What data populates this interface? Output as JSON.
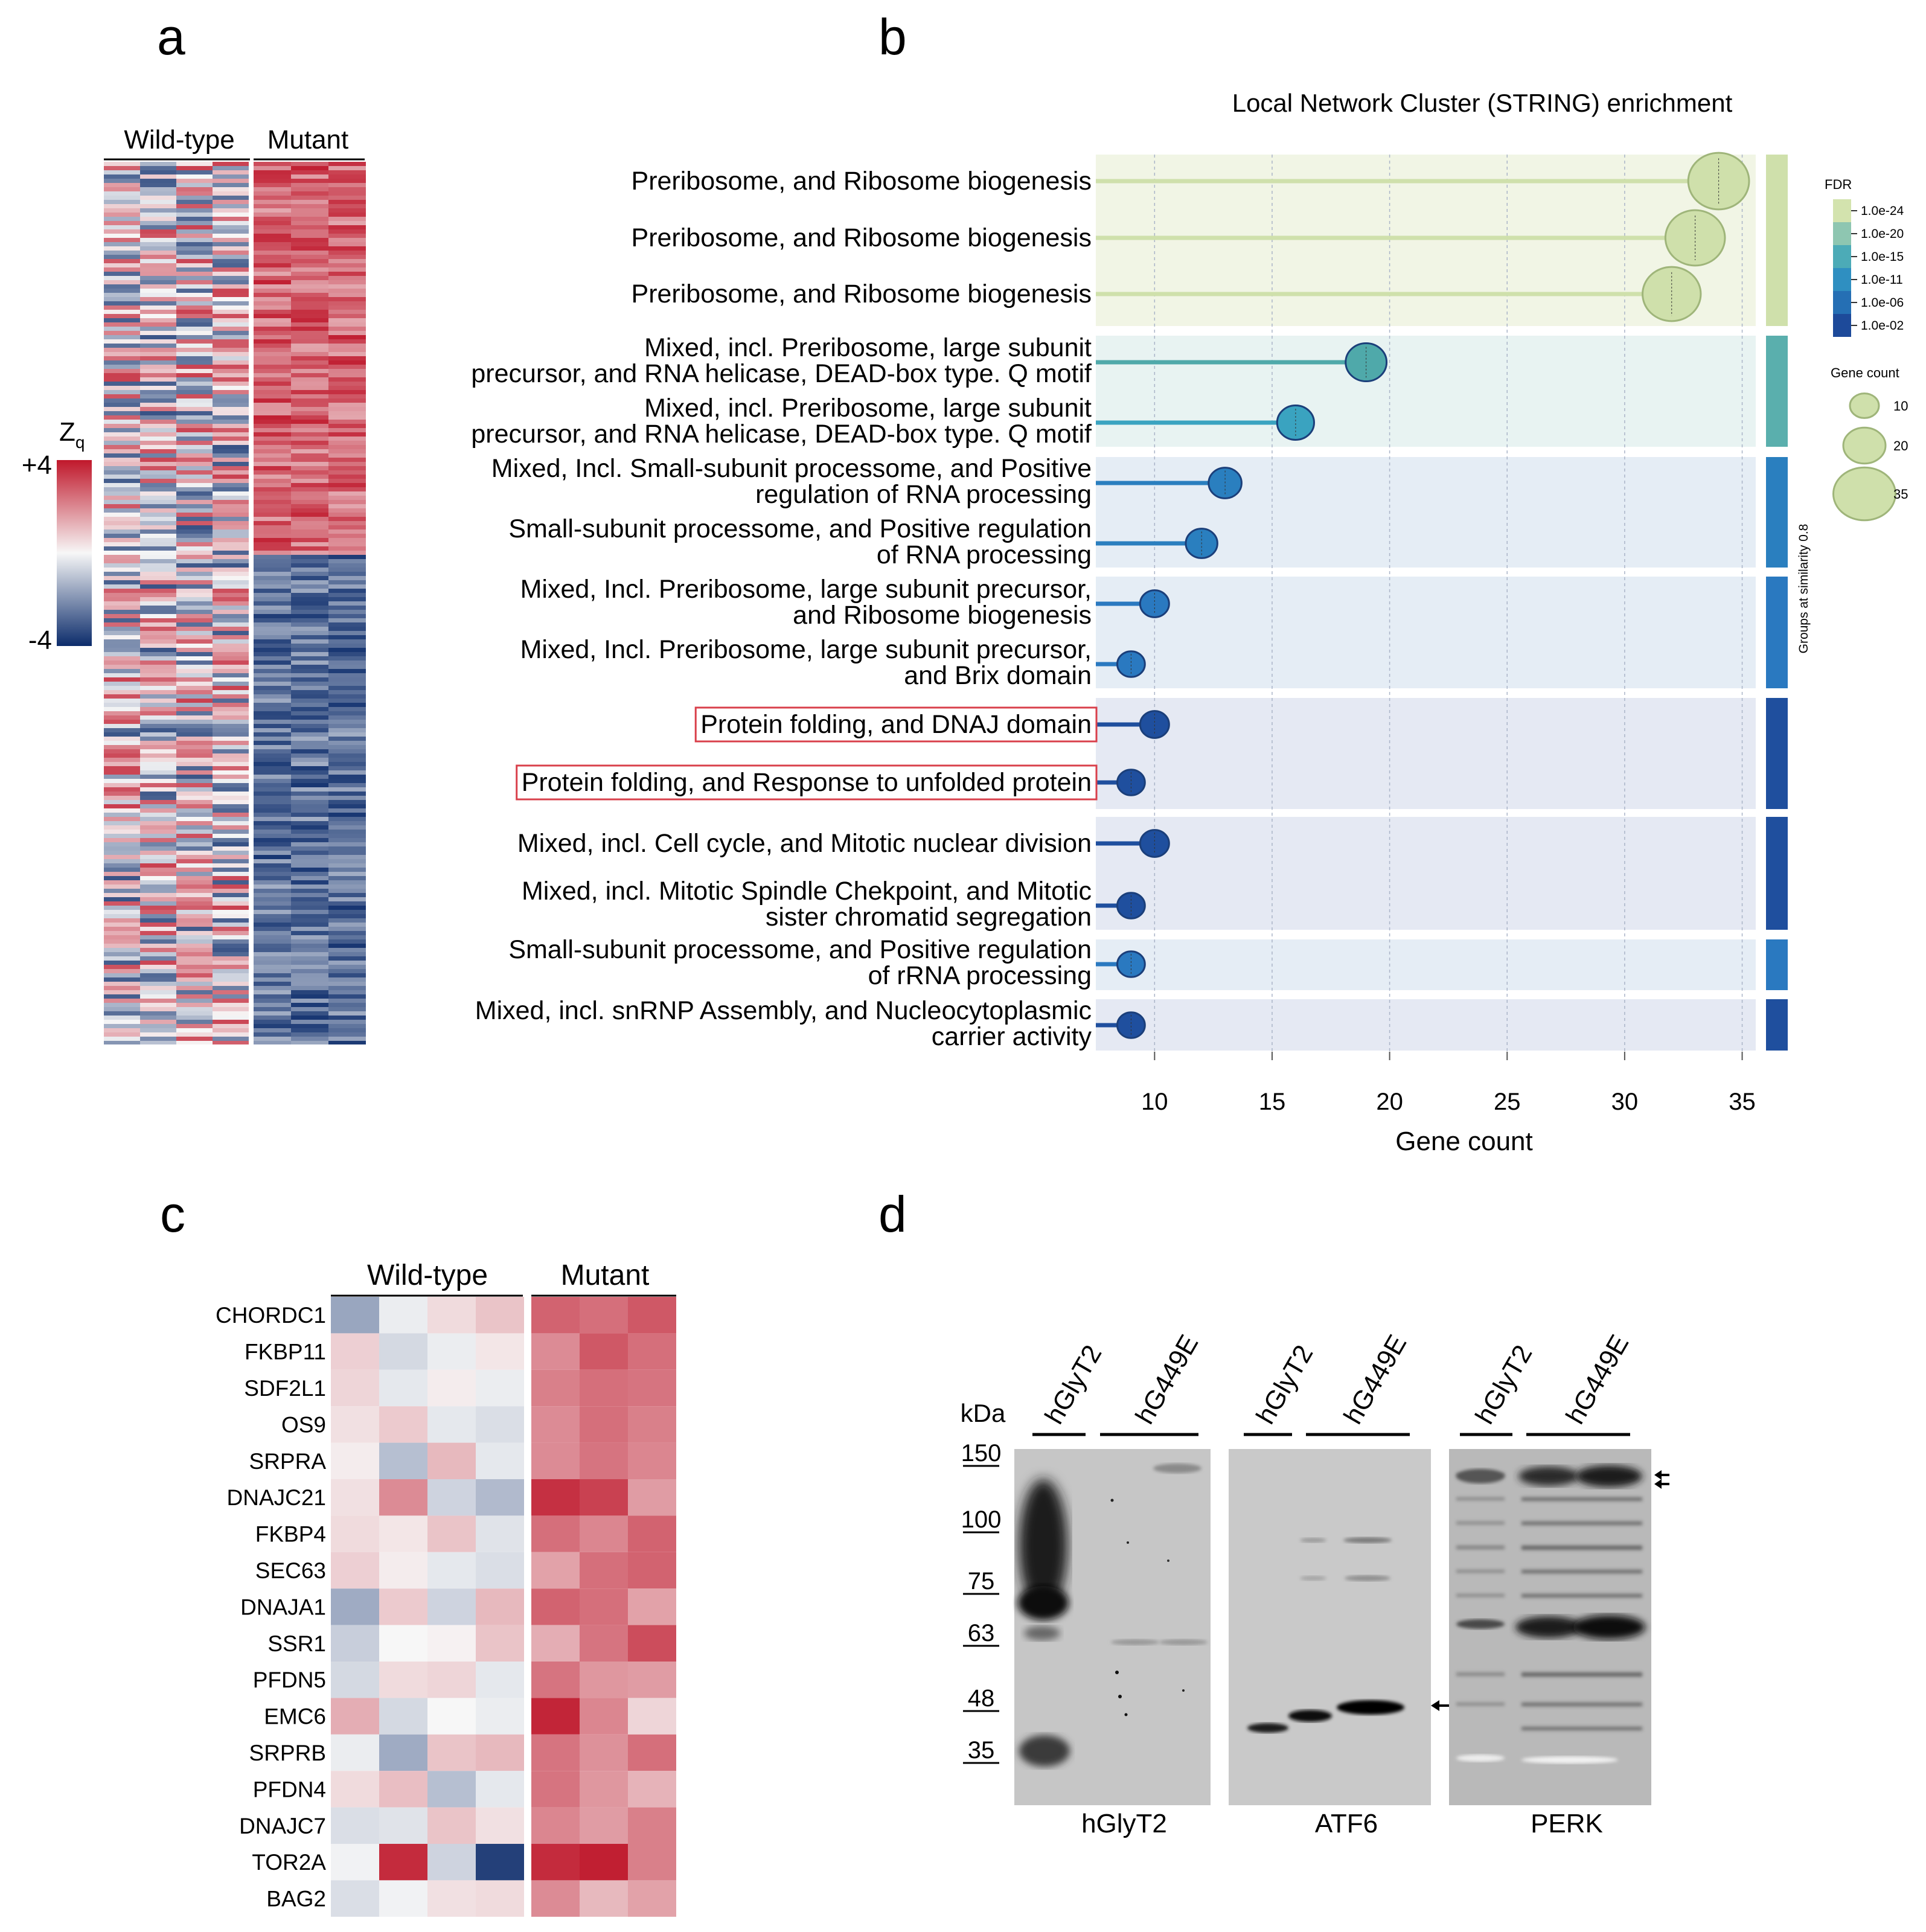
{
  "panel_labels": {
    "a": "a",
    "b": "b",
    "c": "c",
    "d": "d"
  },
  "panel_a": {
    "group_wt": "Wild-type",
    "group_mut": "Mutant",
    "scale_title": "Z",
    "scale_sub": "q",
    "scale_max": "+4",
    "scale_min": "-4"
  },
  "chart_data": [
    {
      "type": "scatter",
      "title": "Local Network Cluster (STRING) enrichment",
      "xlabel": "Gene count",
      "ylabel": "",
      "xlim": [
        7.5,
        35.5
      ],
      "xticks": [
        10,
        15,
        20,
        25,
        30,
        35
      ],
      "grid": true,
      "categories": [
        "Preribosome, and Ribosome biogenesis",
        "Preribosome, and Ribosome biogenesis",
        "Preribosome, and Ribosome biogenesis",
        "Mixed, incl. Preribosome, large subunit precursor, and RNA helicase, DEAD-box type. Q motif",
        "Mixed, incl. Preribosome, large subunit precursor, and RNA helicase, DEAD-box type. Q motif",
        "Mixed, Incl. Small-subunit processome, and Positive regulation of RNA processing",
        "Small-subunit processome, and Positive regulation of RNA processing",
        "Mixed, Incl. Preribosome, large subunit precursor, and Ribosome biogenesis",
        "Mixed, Incl. Preribosome, large subunit precursor, and Brix domain",
        "Protein folding, and DNAJ domain",
        "Protein folding, and Response to unfolded protein",
        "Mixed, incl. Cell cycle, and Mitotic nuclear division",
        "Mixed, incl. Mitotic Spindle Chekpoint, and Mitotic sister chromatid segregation",
        "Small-subunit processome, and Positive regulation of rRNA processing",
        "Mixed, incl. snRNP Assembly, and Nucleocytoplasmic carrier activity"
      ],
      "label_lines": [
        [
          "Preribosome, and Ribosome biogenesis"
        ],
        [
          "Preribosome, and Ribosome biogenesis"
        ],
        [
          "Preribosome, and Ribosome biogenesis"
        ],
        [
          "Mixed, incl. Preribosome, large subunit",
          "precursor, and RNA helicase, DEAD-box type. Q motif"
        ],
        [
          "Mixed, incl. Preribosome, large subunit",
          "precursor, and RNA helicase, DEAD-box type. Q motif"
        ],
        [
          "Mixed, Incl. Small-subunit processome, and Positive",
          "regulation of RNA processing"
        ],
        [
          "Small-subunit processome, and Positive regulation",
          "of RNA processing"
        ],
        [
          "Mixed, Incl. Preribosome, large subunit precursor,",
          "and Ribosome biogenesis"
        ],
        [
          "Mixed, Incl. Preribosome, large subunit precursor,",
          "and Brix domain"
        ],
        [
          "Protein folding, and DNAJ domain"
        ],
        [
          "Protein folding, and Response to unfolded protein"
        ],
        [
          "Mixed, incl. Cell cycle, and Mitotic nuclear division"
        ],
        [
          "Mixed, incl. Mitotic Spindle Chekpoint, and Mitotic",
          "sister chromatid segregation"
        ],
        [
          "Small-subunit processome, and Positive  regulation",
          "of rRNA processing"
        ],
        [
          "Mixed, incl. snRNP Assembly, and  Nucleocytoplasmic",
          "carrier activity"
        ]
      ],
      "highlighted": [
        9,
        10
      ],
      "values": [
        34,
        33,
        32,
        19,
        16,
        13,
        12,
        10,
        9,
        10,
        9,
        10,
        9,
        9,
        9
      ],
      "fdr_color": [
        "#cfe0ab",
        "#cfe0ab",
        "#cfe0ab",
        "#4fa9aa",
        "#3aa3c0",
        "#2a7fbf",
        "#2a7fbf",
        "#2a79c0",
        "#2a79c0",
        "#1f4f9e",
        "#1f4f9e",
        "#1f4f9e",
        "#1f4f9e",
        "#2a79c0",
        "#1f4f9e"
      ],
      "groups": [
        {
          "rows": [
            0,
            1,
            2
          ],
          "bg": "#f1f5e5",
          "bar": "#cfe0ab"
        },
        {
          "rows": [
            3,
            4
          ],
          "bg": "#e8f3f2",
          "bar": "#5aafad"
        },
        {
          "rows": [
            5,
            6
          ],
          "bg": "#e5edf5",
          "bar": "#2a7fbf"
        },
        {
          "rows": [
            7,
            8
          ],
          "bg": "#e5edf5",
          "bar": "#2a79c0"
        },
        {
          "rows": [
            9,
            10
          ],
          "bg": "#e5e9f3",
          "bar": "#1f4f9e"
        },
        {
          "rows": [
            11,
            12
          ],
          "bg": "#e5e9f3",
          "bar": "#1f4f9e"
        },
        {
          "rows": [
            13
          ],
          "bg": "#e5edf5",
          "bar": "#2a79c0"
        },
        {
          "rows": [
            14
          ],
          "bg": "#e5e9f3",
          "bar": "#1f4f9e"
        }
      ],
      "side_label": "Groups at similarity 0.8",
      "legend_fdr": {
        "title": "FDR",
        "entries": [
          "1.0e-24",
          "1.0e-20",
          "1.0e-15",
          "1.0e-11",
          "1.0e-06",
          "1.0e-02"
        ],
        "colors": [
          "#d3e3ae",
          "#8ec6b1",
          "#4cabb7",
          "#2f8fc1",
          "#256fb4",
          "#1d4a9a"
        ]
      },
      "legend_size": {
        "title": "Gene count",
        "entries": [
          "10",
          "20",
          "35"
        ],
        "values": [
          10,
          20,
          35
        ]
      }
    },
    {
      "type": "heatmap",
      "title": "",
      "column_groups": [
        "Wild-type",
        "Mutant"
      ],
      "genes": [
        "CHORDC1",
        "FKBP11",
        "SDF2L1",
        "OS9",
        "SRPRA",
        "DNAJC21",
        "FKBP4",
        "SEC63",
        "DNAJA1",
        "SSR1",
        "PFDN5",
        "EMC6",
        "SRPRB",
        "PFDN4",
        "DNAJC7",
        "TOR2A",
        "BAG2"
      ],
      "z": [
        [
          -1.6,
          -0.2,
          0.5,
          0.9,
          2.6,
          2.4,
          2.8
        ],
        [
          0.7,
          -0.6,
          -0.2,
          0.3,
          1.9,
          2.8,
          2.4
        ],
        [
          0.6,
          -0.3,
          0.2,
          -0.2,
          2.1,
          2.4,
          2.3
        ],
        [
          0.4,
          0.8,
          -0.3,
          -0.5,
          1.9,
          2.4,
          2.1
        ],
        [
          0.2,
          -1.1,
          1.1,
          -0.3,
          1.9,
          2.3,
          2.0
        ],
        [
          0.4,
          1.9,
          -0.7,
          -1.2,
          3.5,
          3.2,
          1.6
        ],
        [
          0.5,
          0.3,
          0.9,
          -0.4,
          2.4,
          2.0,
          2.6
        ],
        [
          0.7,
          0.2,
          -0.3,
          -0.5,
          1.5,
          2.4,
          2.6
        ],
        [
          -1.5,
          0.8,
          -0.7,
          1.1,
          2.6,
          2.4,
          1.5
        ],
        [
          -0.8,
          0.0,
          0.1,
          0.9,
          1.3,
          2.3,
          3.0
        ],
        [
          -0.6,
          0.5,
          0.6,
          -0.3,
          2.3,
          1.7,
          1.6
        ],
        [
          1.3,
          -0.6,
          0.0,
          -0.2,
          3.7,
          2.0,
          0.6
        ],
        [
          -0.2,
          -1.5,
          0.9,
          1.1,
          2.3,
          1.8,
          2.4
        ],
        [
          0.5,
          1.0,
          -1.1,
          -0.3,
          2.3,
          1.7,
          1.2
        ],
        [
          -0.5,
          -0.4,
          0.9,
          0.4,
          2.0,
          1.6,
          2.1
        ],
        [
          -0.1,
          3.6,
          -0.7,
          -3.6,
          3.6,
          3.8,
          2.1
        ],
        [
          -0.5,
          -0.1,
          0.4,
          0.5,
          1.9,
          1.1,
          1.5
        ]
      ]
    }
  ],
  "panel_d": {
    "unit_label": "kDa",
    "markers": [
      "150",
      "100",
      "75",
      "63",
      "48",
      "35"
    ],
    "lane_wt": "hGlyT2",
    "lane_mut": "hG449E",
    "blots": [
      "hGlyT2",
      "ATF6",
      "PERK"
    ]
  }
}
